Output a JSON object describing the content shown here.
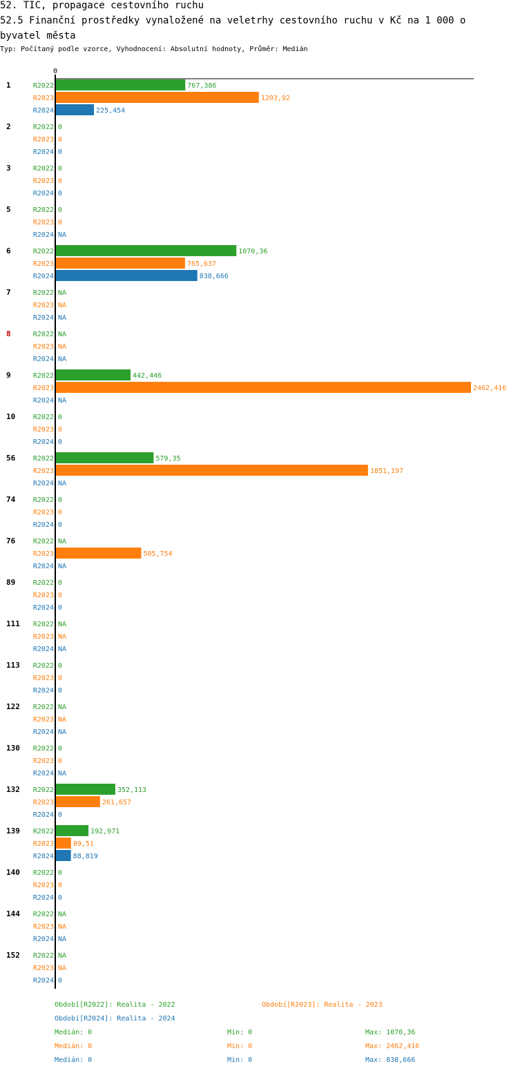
{
  "title_line1": "52. TIC, propagace cestovního ruchu",
  "title_line2": "52.5 Finanční  prostředky vynaložené na veletrhy cestovního ruchu v Kč na 1 000 o",
  "title_line3": "byvatel města",
  "subtitle": "Typ: Počítaný podle vzorce, Vyhodnocení: Absolutní hodnoty, Průměr: Medián",
  "colors": {
    "R2022": "#2ca02c",
    "R2023": "#ff7f0e",
    "R2024": "#1f77b4",
    "highlight_category": "#cc0000"
  },
  "chart_data": {
    "type": "bar",
    "orientation": "horizontal",
    "axis_zero_label": "0",
    "xlim": [
      0,
      2462.416
    ],
    "grid": false,
    "highlight_category": "8",
    "categories": [
      "1",
      "2",
      "3",
      "5",
      "6",
      "7",
      "8",
      "9",
      "10",
      "56",
      "74",
      "76",
      "89",
      "111",
      "113",
      "122",
      "130",
      "132",
      "139",
      "140",
      "144",
      "152"
    ],
    "series": [
      {
        "name": "R2022",
        "values": [
          767.386,
          0,
          0,
          0,
          1070.36,
          null,
          null,
          442.446,
          0,
          579.35,
          0,
          null,
          0,
          null,
          0,
          null,
          0,
          352.113,
          192.971,
          0,
          null,
          null
        ],
        "labels": [
          "767,386",
          "0",
          "0",
          "0",
          "1070,36",
          "NA",
          "NA",
          "442,446",
          "0",
          "579,35",
          "0",
          "NA",
          "0",
          "NA",
          "0",
          "NA",
          "0",
          "352,113",
          "192,971",
          "0",
          "NA",
          "NA"
        ]
      },
      {
        "name": "R2023",
        "values": [
          1203.92,
          0,
          0,
          0,
          765.637,
          null,
          null,
          2462.416,
          0,
          1851.197,
          0,
          505.754,
          0,
          null,
          0,
          null,
          0,
          261.657,
          89.51,
          0,
          null,
          null
        ],
        "labels": [
          "1203,92",
          "0",
          "0",
          "0",
          "765,637",
          "NA",
          "NA",
          "2462,416",
          "0",
          "1851,197",
          "0",
          "505,754",
          "0",
          "NA",
          "0",
          "NA",
          "0",
          "261,657",
          "89,51",
          "0",
          "NA",
          "NA"
        ]
      },
      {
        "name": "R2024",
        "values": [
          225.454,
          0,
          0,
          null,
          838.666,
          null,
          null,
          null,
          0,
          null,
          0,
          null,
          0,
          null,
          0,
          null,
          null,
          0,
          88.819,
          0,
          null,
          0
        ],
        "labels": [
          "225,454",
          "0",
          "0",
          "NA",
          "838,666",
          "NA",
          "NA",
          "NA",
          "0",
          "NA",
          "0",
          "NA",
          "0",
          "NA",
          "0",
          "NA",
          "NA",
          "0",
          "88,819",
          "0",
          "NA",
          "0"
        ]
      }
    ]
  },
  "legend": {
    "periods": [
      {
        "text": "Období[R2022]: Realita - 2022",
        "series": "R2022"
      },
      {
        "text": "Období[R2023]: Realita - 2023",
        "series": "R2023"
      },
      {
        "text": "Období[R2024]: Realita - 2024",
        "series": "R2024"
      }
    ],
    "stats": [
      {
        "series": "R2022",
        "median": "Medián: 0",
        "min": "Min: 0",
        "max": "Max: 1070,36"
      },
      {
        "series": "R2023",
        "median": "Medián: 0",
        "min": "Min: 0",
        "max": "Max: 2462,416"
      },
      {
        "series": "R2024",
        "median": "Medián: 0",
        "min": "Min: 0",
        "max": "Max: 838,666"
      }
    ]
  }
}
